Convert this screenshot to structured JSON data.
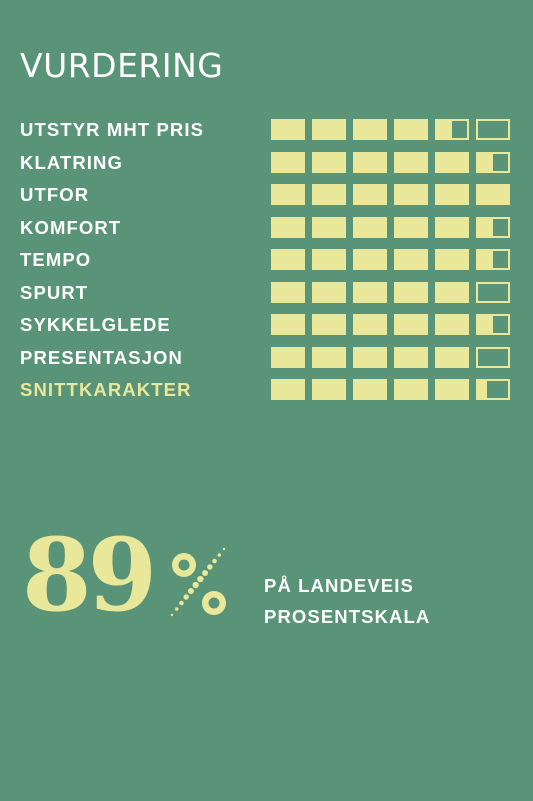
{
  "header": {
    "title": "VURDERING"
  },
  "ratings": [
    {
      "label": "UTSTYR MHT PRIS",
      "score": 4.5,
      "max": 6
    },
    {
      "label": "KLATRING",
      "score": 5.5,
      "max": 6
    },
    {
      "label": "UTFOR",
      "score": 6,
      "max": 6
    },
    {
      "label": "KOMFORT",
      "score": 5.5,
      "max": 6
    },
    {
      "label": "TEMPO",
      "score": 5.5,
      "max": 6
    },
    {
      "label": "SPURT",
      "score": 5,
      "max": 6
    },
    {
      "label": "SYKKELGLEDE",
      "score": 5.5,
      "max": 6
    },
    {
      "label": "PRESENTASJON",
      "score": 5,
      "max": 6
    },
    {
      "label": "SNITTKARAKTER",
      "score": 5.3,
      "max": 6,
      "highlight": true
    }
  ],
  "summary": {
    "number": "89",
    "caption_line1": "PÅ LANDEVEIS",
    "caption_line2": "PROSENTSKALA"
  },
  "colors": {
    "background": "#5a9478",
    "accent": "#e8e79a",
    "text": "#ffffff"
  }
}
